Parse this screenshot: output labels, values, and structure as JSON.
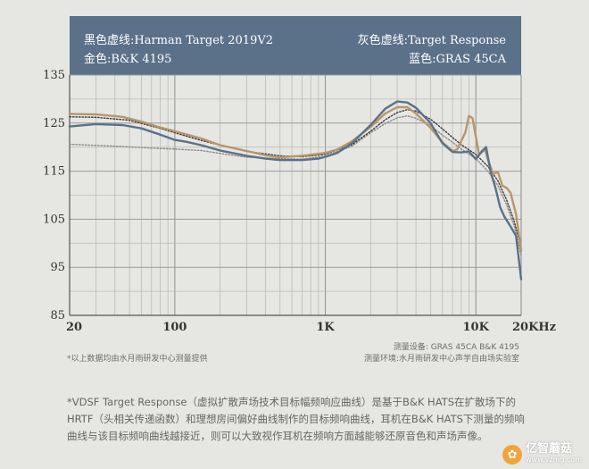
{
  "chart_data": {
    "type": "line",
    "x_scale": "log",
    "xlim": [
      20,
      20000
    ],
    "ylim": [
      85,
      135
    ],
    "grid": true,
    "legend_position": "top",
    "legend": {
      "top_left": "黑色虚线:Harman Target 2019V2",
      "bottom_left": "金色:B&K 4195",
      "top_right": "灰色虚线:Target Response",
      "bottom_right": "蓝色:GRAS 45CA"
    },
    "y_ticks": [
      85,
      95,
      105,
      115,
      125,
      135
    ],
    "x_ticks": [
      {
        "value": 20,
        "label": "20"
      },
      {
        "value": 100,
        "label": "100"
      },
      {
        "value": 1000,
        "label": "1K"
      },
      {
        "value": 10000,
        "label": "10K"
      },
      {
        "value": 20000,
        "label": "20KHz"
      }
    ],
    "series": [
      {
        "name": "蓝色:GRAS 45CA",
        "color": "#5a7189",
        "style": "solid",
        "points": [
          [
            20,
            124.3
          ],
          [
            30,
            124.8
          ],
          [
            45,
            124.6
          ],
          [
            60,
            123.9
          ],
          [
            80,
            122.6
          ],
          [
            100,
            121.5
          ],
          [
            120,
            121.1
          ],
          [
            150,
            120.4
          ],
          [
            200,
            119.3
          ],
          [
            300,
            118.2
          ],
          [
            400,
            117.6
          ],
          [
            500,
            117.3
          ],
          [
            700,
            117.3
          ],
          [
            900,
            117.6
          ],
          [
            1000,
            118.0
          ],
          [
            1200,
            118.8
          ],
          [
            1500,
            120.8
          ],
          [
            2000,
            124.6
          ],
          [
            2500,
            128.0
          ],
          [
            3000,
            129.5
          ],
          [
            3500,
            129.3
          ],
          [
            4000,
            128.2
          ],
          [
            5000,
            125.0
          ],
          [
            6000,
            120.8
          ],
          [
            7000,
            119.0
          ],
          [
            8000,
            118.9
          ],
          [
            9000,
            119.1
          ],
          [
            10000,
            117.5
          ],
          [
            11000,
            119.2
          ],
          [
            11700,
            120.0
          ],
          [
            12500,
            115.0
          ],
          [
            13500,
            111.5
          ],
          [
            14500,
            107.5
          ],
          [
            15500,
            105.5
          ],
          [
            17000,
            103.5
          ],
          [
            18500,
            101.5
          ],
          [
            20000,
            92.5
          ]
        ]
      },
      {
        "name": "金色:B&K 4195",
        "color": "#b7976a",
        "style": "solid",
        "points": [
          [
            20,
            126.9
          ],
          [
            30,
            126.8
          ],
          [
            45,
            126.3
          ],
          [
            60,
            125.3
          ],
          [
            80,
            124.1
          ],
          [
            100,
            123.3
          ],
          [
            150,
            121.8
          ],
          [
            200,
            120.4
          ],
          [
            300,
            119.2
          ],
          [
            400,
            118.3
          ],
          [
            500,
            117.9
          ],
          [
            700,
            118.2
          ],
          [
            900,
            118.6
          ],
          [
            1000,
            118.8
          ],
          [
            1200,
            119.5
          ],
          [
            1500,
            121.2
          ],
          [
            2000,
            124.2
          ],
          [
            2500,
            127.0
          ],
          [
            3000,
            128.3
          ],
          [
            3500,
            128.3
          ],
          [
            4000,
            127.0
          ],
          [
            5000,
            124.0
          ],
          [
            6000,
            121.0
          ],
          [
            7000,
            119.2
          ],
          [
            7500,
            119.5
          ],
          [
            8500,
            123.0
          ],
          [
            9000,
            126.5
          ],
          [
            9500,
            126.0
          ],
          [
            10500,
            118.5
          ],
          [
            11500,
            119.5
          ],
          [
            12000,
            117.5
          ],
          [
            13000,
            114.5
          ],
          [
            14000,
            114.8
          ],
          [
            15000,
            112.0
          ],
          [
            16000,
            111.5
          ],
          [
            17000,
            110.5
          ],
          [
            18500,
            106.0
          ],
          [
            20000,
            98.5
          ]
        ]
      },
      {
        "name": "黑色虚线:Harman Target 2019V2",
        "color": "#3c3c3c",
        "style": "dotted",
        "points": [
          [
            20,
            126.3
          ],
          [
            30,
            126.2
          ],
          [
            50,
            125.6
          ],
          [
            80,
            123.9
          ],
          [
            100,
            123.0
          ],
          [
            150,
            121.4
          ],
          [
            200,
            120.4
          ],
          [
            300,
            119.1
          ],
          [
            500,
            118.2
          ],
          [
            700,
            118.0
          ],
          [
            1000,
            118.5
          ],
          [
            1500,
            120.5
          ],
          [
            2000,
            123.3
          ],
          [
            2500,
            125.7
          ],
          [
            3000,
            127.2
          ],
          [
            3500,
            127.8
          ],
          [
            4000,
            127.5
          ],
          [
            5000,
            125.8
          ],
          [
            6000,
            123.8
          ],
          [
            7000,
            122.0
          ],
          [
            8000,
            120.5
          ],
          [
            10000,
            118.5
          ],
          [
            12000,
            116.0
          ],
          [
            14000,
            113.0
          ],
          [
            16000,
            109.0
          ],
          [
            18000,
            104.5
          ],
          [
            20000,
            99.0
          ]
        ]
      },
      {
        "name": "灰色虚线:Target Response",
        "color": "#8a8a8a",
        "style": "dotted",
        "points": [
          [
            20,
            120.6
          ],
          [
            40,
            120.2
          ],
          [
            70,
            119.8
          ],
          [
            100,
            119.6
          ],
          [
            150,
            119.3
          ],
          [
            200,
            118.7
          ],
          [
            300,
            117.9
          ],
          [
            500,
            117.6
          ],
          [
            700,
            117.5
          ],
          [
            1000,
            118.1
          ],
          [
            1500,
            120.2
          ],
          [
            2000,
            123.0
          ],
          [
            2500,
            124.9
          ],
          [
            3000,
            126.1
          ],
          [
            3500,
            126.5
          ],
          [
            4000,
            126.0
          ],
          [
            5000,
            124.5
          ],
          [
            6000,
            122.5
          ],
          [
            7000,
            121.0
          ],
          [
            8000,
            119.6
          ],
          [
            10000,
            117.6
          ],
          [
            12000,
            115.0
          ],
          [
            14000,
            112.0
          ],
          [
            16000,
            108.0
          ],
          [
            18000,
            103.5
          ],
          [
            20000,
            97.5
          ]
        ]
      }
    ]
  },
  "notes": {
    "left": "*以上数据均由水月雨研发中心测量提供",
    "device": "测量设备:  GRAS 45CA    B&K 4195",
    "env": "测量环境:水月雨研发中心声学自由场实验室"
  },
  "footnote": "*VDSF Target Response（虚拟扩散声场技术目标幅频响应曲线）是基于B&K HATS在扩散场下的HRTF（头相关传递函数）和理想房间偏好曲线制作的目标频响曲线，耳机在B&K HATS下测量的频响曲线与该目标频响曲线越接近，则可以大致视作耳机在频响方面越能够还原音色和声场声像。",
  "watermark": {
    "name": "亿智蘑菇",
    "url": "www.yzmg.com",
    "logo_color": "#f2a33a"
  }
}
